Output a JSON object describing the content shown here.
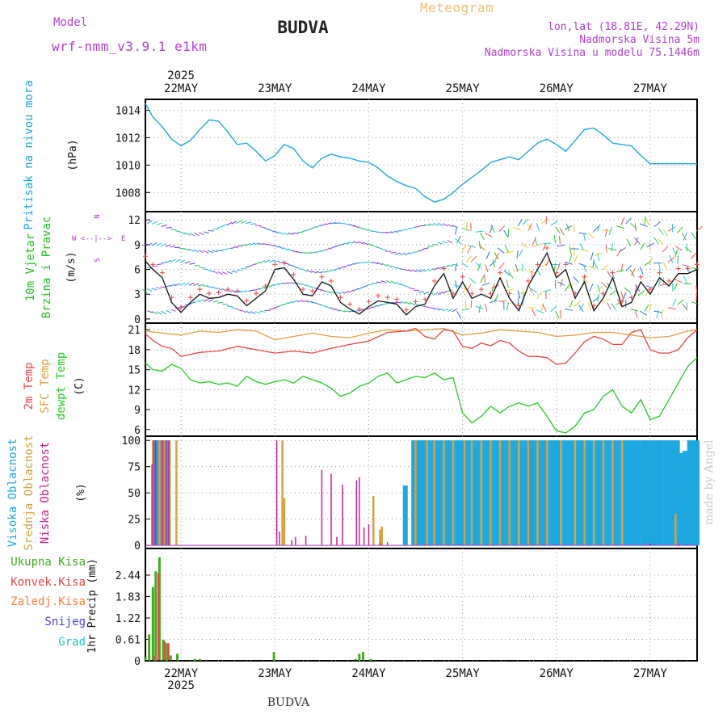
{
  "header": {
    "title": "BUDVA",
    "bottom_title": "BUDVA",
    "model_label": "Model",
    "model_name": "wrf-nmm_v3.9.1 e1km",
    "meteogram": "Meteogram",
    "location_lines": [
      "lon,lat (18.81E, 42.29N)",
      "Nadmorska Visina 5m",
      "Nadmorska Visina u modelu 75.1446m"
    ],
    "watermark": "made by Angel"
  },
  "colors": {
    "pressure": "#1ea8e0",
    "wind_label": "#22c022",
    "temp2m": "#ee4444",
    "sfc": "#e0a040",
    "dewpt": "#22cc22",
    "high_cloud": "#1ea8e0",
    "mid_cloud": "#d8a040",
    "low_cloud": "#d02090",
    "total_precip": "#44aa22",
    "conv_precip": "#ee4444",
    "frozen_precip": "#ff8040",
    "snow": "#4444dd",
    "graupel": "#22c8c8",
    "grid": "#999999"
  },
  "chart_data": [
    {
      "type": "line",
      "panel": "pressure",
      "ylabel": "(hPa)",
      "side_label": "Pritisak na nivou mora",
      "ylim": [
        1006.6,
        1014.8
      ],
      "yticks": [
        1008,
        1010,
        1012,
        1014
      ],
      "year_label": "2025",
      "xtick_labels": [
        "22MAY",
        "23MAY",
        "24MAY",
        "25MAY",
        "26MAY",
        "27MAY"
      ],
      "xlim_days": [
        21.62,
        27.5
      ],
      "series": [
        {
          "values_x": [
            21.62,
            21.7,
            21.8,
            21.9,
            22.0,
            22.1,
            22.2,
            22.3,
            22.4,
            22.5,
            22.6,
            22.7,
            22.8,
            22.9,
            23.0,
            23.1,
            23.2,
            23.3,
            23.4,
            23.5,
            23.6,
            23.7,
            23.8,
            23.9,
            24.0,
            24.1,
            24.2,
            24.3,
            24.4,
            24.5,
            24.6,
            24.7,
            24.8,
            24.9,
            25.0,
            25.1,
            25.2,
            25.3,
            25.4,
            25.5,
            25.6,
            25.7,
            25.8,
            25.9,
            26.0,
            26.1,
            26.2,
            26.3,
            26.4,
            26.5,
            26.6,
            26.7,
            26.8,
            26.9,
            27.0,
            27.1,
            27.2,
            27.3,
            27.4,
            27.5
          ],
          "values_y": [
            1014.5,
            1013.5,
            1012.8,
            1011.9,
            1011.4,
            1011.8,
            1012.6,
            1013.3,
            1013.2,
            1012.4,
            1011.5,
            1011.6,
            1011.0,
            1010.3,
            1010.7,
            1011.5,
            1011.2,
            1010.3,
            1009.8,
            1010.5,
            1010.8,
            1010.6,
            1010.5,
            1010.3,
            1010.2,
            1009.8,
            1009.2,
            1008.8,
            1008.5,
            1008.3,
            1007.7,
            1007.3,
            1007.5,
            1008.0,
            1008.6,
            1009.1,
            1009.6,
            1010.2,
            1010.4,
            1010.6,
            1010.4,
            1011.0,
            1011.6,
            1011.9,
            1011.5,
            1011.0,
            1011.8,
            1012.6,
            1012.7,
            1012.2,
            1011.6,
            1011.5,
            1011.4,
            1010.7,
            1010.1,
            1010.1,
            1010.1,
            1010.1,
            1010.1,
            1010.1
          ]
        }
      ]
    },
    {
      "type": "line",
      "panel": "wind",
      "ylabel": "(m/s)",
      "side_label_1": "10m Vjetar",
      "side_label_2": "Brzina i Pravac",
      "compass_n": "N",
      "compass_w": "W",
      "compass_e": "E",
      "compass_s": "S",
      "ylim": [
        -0.5,
        13
      ],
      "yticks": [
        0,
        3,
        6,
        9,
        12
      ],
      "series": [
        {
          "name": "wind_speed",
          "values_x": [
            21.62,
            21.7,
            21.8,
            21.9,
            22.0,
            22.1,
            22.2,
            22.3,
            22.4,
            22.5,
            22.6,
            22.7,
            22.8,
            22.9,
            23.0,
            23.1,
            23.2,
            23.3,
            23.4,
            23.5,
            23.6,
            23.7,
            23.8,
            23.9,
            24.0,
            24.1,
            24.2,
            24.3,
            24.4,
            24.5,
            24.6,
            24.7,
            24.8,
            24.9,
            25.0,
            25.1,
            25.2,
            25.3,
            25.4,
            25.5,
            25.6,
            25.7,
            25.8,
            25.9,
            26.0,
            26.1,
            26.2,
            26.3,
            26.4,
            26.5,
            26.6,
            26.7,
            26.8,
            26.9,
            27.0,
            27.1,
            27.2,
            27.3,
            27.4,
            27.5
          ],
          "values_y": [
            7.0,
            6.0,
            5.0,
            2.0,
            0.8,
            2.0,
            3.0,
            2.5,
            2.6,
            3.0,
            2.8,
            1.6,
            2.5,
            3.4,
            6.0,
            6.2,
            4.8,
            3.0,
            2.8,
            4.5,
            4.0,
            2.0,
            1.2,
            0.6,
            1.5,
            2.2,
            2.0,
            1.8,
            0.5,
            1.5,
            1.8,
            4.0,
            5.5,
            2.5,
            4.5,
            2.5,
            3.0,
            2.5,
            5.0,
            2.5,
            1.0,
            4.0,
            6.0,
            8.0,
            5.0,
            6.0,
            2.5,
            4.5,
            1.0,
            2.5,
            5.0,
            1.5,
            2.0,
            4.5,
            3.0,
            5.0,
            4.0,
            5.5,
            5.5,
            6.0
          ]
        }
      ]
    },
    {
      "type": "line",
      "panel": "temperature",
      "ylabel": "(C)",
      "side_label_1": "2m Temp",
      "side_label_2": "SFC Temp",
      "side_label_3": "dewpt Temp",
      "ylim": [
        5.0,
        22.0
      ],
      "yticks": [
        6,
        9,
        12,
        15,
        18,
        21
      ],
      "series": [
        {
          "name": "2m Temp",
          "values_x": [
            21.62,
            21.7,
            21.8,
            21.9,
            22.0,
            22.2,
            22.4,
            22.6,
            22.8,
            23.0,
            23.2,
            23.4,
            23.6,
            23.8,
            24.0,
            24.2,
            24.4,
            24.5,
            24.6,
            24.7,
            24.8,
            24.9,
            25.0,
            25.1,
            25.2,
            25.3,
            25.4,
            25.5,
            25.6,
            25.7,
            25.8,
            25.9,
            26.0,
            26.1,
            26.2,
            26.3,
            26.4,
            26.5,
            26.6,
            26.7,
            26.8,
            26.9,
            27.0,
            27.1,
            27.2,
            27.3,
            27.4,
            27.5
          ],
          "values_y": [
            20.4,
            19.4,
            18.5,
            18.2,
            17.0,
            17.6,
            17.8,
            18.5,
            18.0,
            17.5,
            17.8,
            17.5,
            18.2,
            18.8,
            19.3,
            20.6,
            20.8,
            21.2,
            20.0,
            19.6,
            21.0,
            20.8,
            18.5,
            18.2,
            19.0,
            18.6,
            19.4,
            19.0,
            17.8,
            17.0,
            17.0,
            16.8,
            15.8,
            16.0,
            17.5,
            19.2,
            20.0,
            19.6,
            18.8,
            18.8,
            20.6,
            21.0,
            18.0,
            17.5,
            17.5,
            18.0,
            19.8,
            21.0
          ]
        },
        {
          "name": "SFC Temp",
          "values_x": [
            21.62,
            21.8,
            22.0,
            22.2,
            22.4,
            22.6,
            22.8,
            23.0,
            23.2,
            23.4,
            23.6,
            23.8,
            24.0,
            24.2,
            24.4,
            24.6,
            24.8,
            25.0,
            25.2,
            25.4,
            25.6,
            25.8,
            26.0,
            26.2,
            26.4,
            26.6,
            26.8,
            27.0,
            27.2,
            27.4,
            27.5
          ],
          "values_y": [
            20.8,
            20.5,
            20.2,
            20.8,
            20.6,
            21.0,
            20.8,
            19.5,
            20.0,
            20.5,
            20.0,
            19.8,
            20.5,
            21.0,
            20.8,
            21.0,
            21.2,
            20.2,
            20.5,
            21.0,
            20.8,
            20.6,
            20.0,
            20.2,
            20.6,
            20.6,
            20.2,
            19.8,
            20.0,
            20.8,
            21.0
          ]
        },
        {
          "name": "dewpt Temp",
          "values_x": [
            21.62,
            21.7,
            21.8,
            21.9,
            22.0,
            22.1,
            22.2,
            22.3,
            22.4,
            22.5,
            22.6,
            22.7,
            22.8,
            22.9,
            23.0,
            23.1,
            23.2,
            23.3,
            23.4,
            23.5,
            23.6,
            23.7,
            23.8,
            23.9,
            24.0,
            24.1,
            24.2,
            24.3,
            24.4,
            24.5,
            24.6,
            24.7,
            24.8,
            24.9,
            25.0,
            25.1,
            25.2,
            25.3,
            25.4,
            25.5,
            25.6,
            25.7,
            25.8,
            25.9,
            26.0,
            26.1,
            26.2,
            26.3,
            26.4,
            26.5,
            26.6,
            26.7,
            26.8,
            26.9,
            27.0,
            27.1,
            27.2,
            27.3,
            27.4,
            27.5
          ],
          "values_y": [
            16.0,
            15.0,
            14.8,
            15.8,
            15.2,
            13.5,
            13.0,
            13.2,
            12.8,
            13.0,
            12.5,
            14.0,
            13.2,
            12.8,
            13.2,
            13.5,
            13.0,
            14.0,
            13.5,
            13.0,
            12.2,
            11.0,
            11.5,
            12.5,
            13.0,
            14.0,
            14.5,
            13.0,
            13.5,
            14.0,
            13.8,
            14.5,
            13.5,
            13.8,
            8.5,
            7.0,
            8.0,
            9.5,
            8.5,
            9.5,
            10.0,
            9.5,
            10.0,
            8.0,
            5.8,
            5.5,
            6.5,
            8.5,
            9.0,
            11.0,
            12.0,
            9.5,
            8.5,
            10.5,
            7.5,
            8.0,
            10.5,
            13.0,
            15.5,
            16.8
          ]
        }
      ]
    },
    {
      "type": "bar",
      "panel": "clouds",
      "ylabel": "(%)",
      "side_label_1": "Visoka Oblacnost",
      "side_label_2": "Srednja Oblacnost",
      "side_label_3": "Niska Oblacnost",
      "ylim": [
        -3,
        104
      ],
      "yticks": [
        0,
        25,
        50,
        75,
        100
      ],
      "series": [
        {
          "name": "Visoka Oblacnost",
          "x": [
            21.72,
            21.74,
            21.76,
            21.79,
            21.82,
            21.85,
            24.39,
            24.48,
            24.52,
            24.56,
            24.6,
            24.63,
            24.67,
            24.71,
            24.75,
            24.79,
            24.83,
            24.87,
            24.91,
            24.96,
            25.0,
            25.04,
            25.08,
            25.12,
            25.17,
            25.21,
            25.25,
            25.29,
            25.33,
            25.37,
            25.42,
            25.46,
            25.5,
            25.54,
            25.58,
            25.62,
            25.67,
            25.71,
            25.75,
            25.79,
            25.83,
            25.87,
            25.92,
            25.96,
            26.0,
            26.04,
            26.08,
            26.12,
            26.17,
            26.21,
            26.25,
            26.29,
            26.33,
            26.37,
            26.42,
            26.46,
            26.5,
            26.54,
            26.58,
            26.62,
            26.67,
            26.71,
            26.75,
            26.79,
            26.83,
            26.87,
            26.92,
            26.96,
            27.0,
            27.04,
            27.08,
            27.12,
            27.17,
            27.21,
            27.25,
            27.29,
            27.33,
            27.37,
            27.42,
            27.46,
            27.5
          ],
          "values": [
            100,
            100,
            100,
            100,
            100,
            100,
            57,
            100,
            100,
            100,
            100,
            100,
            100,
            100,
            100,
            100,
            100,
            100,
            100,
            100,
            100,
            100,
            100,
            100,
            100,
            100,
            100,
            100,
            100,
            100,
            100,
            100,
            100,
            100,
            100,
            100,
            100,
            100,
            100,
            100,
            100,
            100,
            100,
            100,
            100,
            100,
            100,
            100,
            100,
            100,
            100,
            100,
            100,
            100,
            100,
            100,
            100,
            100,
            100,
            100,
            100,
            100,
            100,
            100,
            100,
            100,
            100,
            100,
            100,
            100,
            100,
            100,
            100,
            100,
            100,
            100,
            88,
            90,
            100,
            100,
            100
          ]
        },
        {
          "name": "Srednja Oblacnost",
          "x": [
            21.7,
            21.77,
            21.8,
            21.83,
            21.88,
            21.95,
            23.08,
            23.1,
            24.05,
            24.12,
            24.14,
            24.5,
            24.62,
            24.7,
            24.8,
            24.9,
            25.02,
            25.1,
            25.2,
            25.3,
            25.4,
            25.5,
            25.6,
            25.7,
            25.8,
            25.9,
            26.05,
            26.2,
            26.3,
            26.4,
            26.5,
            26.6,
            26.7,
            27.27
          ],
          "values": [
            100,
            100,
            100,
            100,
            100,
            100,
            100,
            45,
            47,
            15,
            18,
            100,
            100,
            100,
            100,
            100,
            100,
            100,
            100,
            100,
            100,
            100,
            100,
            100,
            100,
            100,
            100,
            100,
            100,
            100,
            100,
            100,
            100,
            30
          ]
        },
        {
          "name": "Niska Oblacnost",
          "x": [
            21.69,
            21.71,
            21.73,
            21.8,
            21.84,
            21.87,
            23.02,
            23.05,
            23.18,
            23.22,
            23.33,
            23.5,
            23.6,
            23.66,
            23.72,
            23.87,
            23.9,
            23.95,
            24.0,
            24.12,
            24.2,
            26.95,
            27.0,
            27.3,
            27.4
          ],
          "values": [
            77,
            100,
            100,
            100,
            100,
            100,
            100,
            13,
            5,
            8,
            9,
            72,
            68,
            8,
            58,
            62,
            65,
            17,
            20,
            2,
            3,
            2,
            2,
            2,
            2
          ]
        }
      ]
    },
    {
      "type": "bar",
      "panel": "precipitation",
      "ylabel": "1hr Precip (mm)",
      "side_label_1": "Ukupna Kisa",
      "side_label_2": "Konvek.Kisa",
      "side_label_3": "Zaledj.Kisa",
      "side_label_4": "Snijeg",
      "side_label_5": "Grad",
      "ylim": [
        0,
        3.2
      ],
      "yticks": [
        0,
        0.61,
        1.22,
        1.83,
        2.44
      ],
      "ytick_labels": [
        "0",
        "0.61",
        "1.22",
        "1.83",
        "2.44"
      ],
      "series": [
        {
          "name": "Ukupna Kisa",
          "x": [
            21.62,
            21.66,
            21.7,
            21.73,
            21.77,
            21.81,
            21.85,
            21.89,
            21.96,
            22.15,
            22.2,
            22.99,
            23.86,
            23.9,
            23.94,
            24.02
          ],
          "values": [
            0.1,
            0.75,
            2.1,
            2.55,
            2.95,
            0.6,
            0.5,
            0.15,
            0.2,
            0.05,
            0.05,
            0.25,
            0.05,
            0.2,
            0.25,
            0.05
          ]
        },
        {
          "name": "Konvek.Kisa",
          "x": [
            21.7,
            21.74,
            21.81,
            21.85
          ],
          "values": [
            0.15,
            2.5,
            0.55,
            0.5
          ]
        }
      ]
    }
  ]
}
